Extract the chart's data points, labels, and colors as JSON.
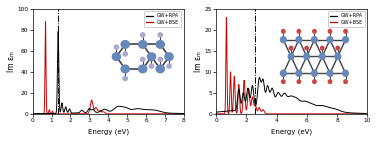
{
  "left_plot": {
    "xlabel": "Energy (eV)",
    "ylabel": "Im εₘ",
    "xlim": [
      0,
      8
    ],
    "ylim": [
      0,
      100
    ],
    "yticks": [
      0,
      20,
      40,
      60,
      80,
      100
    ],
    "xticks": [
      0,
      1,
      2,
      3,
      4,
      5,
      6,
      7,
      8
    ],
    "vline_x": 1.35,
    "rpa_color": "#000000",
    "bse_color": "#cc0000",
    "legend_labels": [
      "GW+RPA",
      "GW+BSE"
    ]
  },
  "right_plot": {
    "xlabel": "Energy (eV)",
    "ylabel": "Im εₘ",
    "xlim": [
      0,
      10
    ],
    "ylim": [
      0,
      25
    ],
    "yticks": [
      0,
      5,
      10,
      15,
      20,
      25
    ],
    "xticks": [
      0,
      2,
      4,
      6,
      8,
      10
    ],
    "vline_x": 2.55,
    "rpa_color": "#000000",
    "bse_color": "#cc0000",
    "legend_labels": [
      "GW+RPA",
      "GW+BSE"
    ]
  },
  "bg_color": "#ffffff"
}
